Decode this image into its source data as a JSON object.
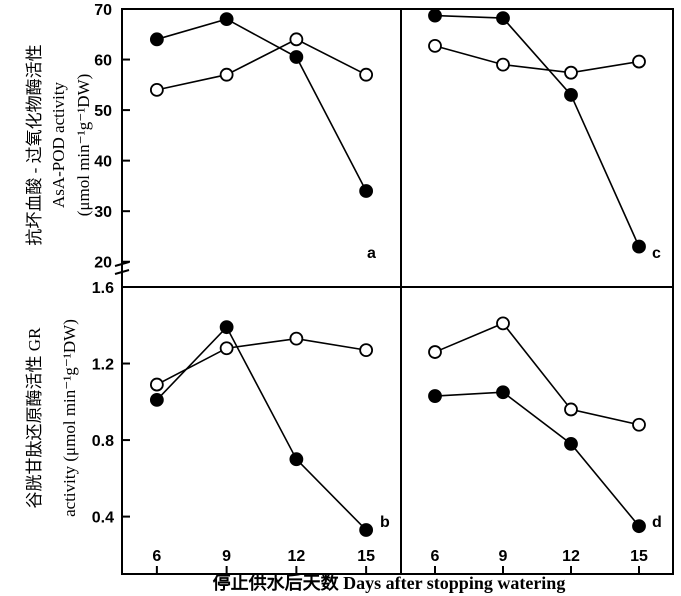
{
  "chart_data": [
    {
      "panel": "a",
      "type": "line",
      "x": [
        6,
        9,
        12,
        15
      ],
      "ylim": [
        15,
        70
      ],
      "series": [
        {
          "marker": "filled",
          "values": [
            64,
            68,
            60.5,
            34
          ]
        },
        {
          "marker": "open",
          "values": [
            54,
            57,
            64,
            57
          ]
        }
      ]
    },
    {
      "panel": "b",
      "type": "line",
      "x": [
        6,
        9,
        12,
        15
      ],
      "ylim": [
        0.1,
        1.6
      ],
      "series": [
        {
          "marker": "filled",
          "values": [
            1.01,
            1.39,
            0.7,
            0.33
          ]
        },
        {
          "marker": "open",
          "values": [
            1.09,
            1.28,
            1.33,
            1.27
          ]
        }
      ]
    },
    {
      "panel": "c",
      "type": "line",
      "x": [
        6,
        9,
        12,
        15
      ],
      "ylim": [
        15,
        70
      ],
      "series": [
        {
          "marker": "filled",
          "values": [
            68.7,
            68.2,
            53,
            23
          ]
        },
        {
          "marker": "open",
          "values": [
            62.7,
            59,
            57.4,
            59.6
          ]
        }
      ]
    },
    {
      "panel": "d",
      "type": "line",
      "x": [
        6,
        9,
        12,
        15
      ],
      "ylim": [
        0.1,
        1.6
      ],
      "series": [
        {
          "marker": "filled",
          "values": [
            1.03,
            1.05,
            0.78,
            0.35
          ]
        },
        {
          "marker": "open",
          "values": [
            1.26,
            1.41,
            0.96,
            0.88
          ]
        }
      ]
    }
  ],
  "axes": {
    "top_yticks": [
      "20",
      "30",
      "40",
      "50",
      "60",
      "70"
    ],
    "top_ytick_values": [
      20,
      30,
      40,
      50,
      60,
      70
    ],
    "bottom_yticks": [
      "0.4",
      "0.8",
      "1.2",
      "1.6"
    ],
    "bottom_ytick_values": [
      0.4,
      0.8,
      1.2,
      1.6
    ],
    "xticks": [
      "6",
      "9",
      "12",
      "15"
    ],
    "xtick_values": [
      6,
      9,
      12,
      15
    ],
    "xlim": [
      4.5,
      16.5
    ]
  },
  "labels": {
    "top_ylabel_line1": "抗坏血酸 - 过氧化物酶活性",
    "top_ylabel_line2": "AsA-POD activity",
    "top_ylabel_line3": "(μmol min⁻¹g⁻¹DW)",
    "bottom_ylabel_line1": "谷胱甘肽还原酶活性 GR",
    "bottom_ylabel_line2": "activity (μmol min⁻¹g⁻¹DW)",
    "xlabel": "停止供水后天数  Days after stopping watering",
    "panel_a": "a",
    "panel_b": "b",
    "panel_c": "c",
    "panel_d": "d"
  }
}
